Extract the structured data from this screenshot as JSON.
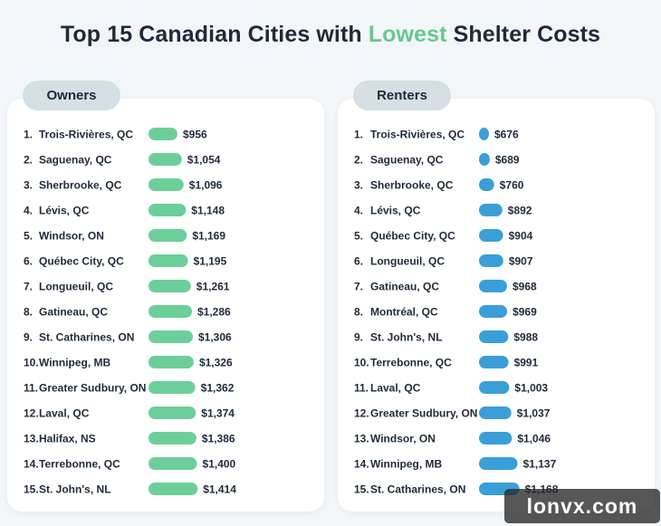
{
  "title": {
    "part1": "Top 15 Canadian Cities with ",
    "highlight": "Lowest",
    "part2": " Shelter Costs"
  },
  "watermark": "lonvx.com",
  "colors": {
    "owners_bar": "#6ccf9a",
    "renters_bar": "#3a9fd8",
    "title_highlight": "#66c891"
  },
  "chart_data": [
    {
      "type": "bar",
      "orientation": "horizontal",
      "panel_label": "Owners",
      "ranks": [
        "1.",
        "2.",
        "3.",
        "4.",
        "5.",
        "6.",
        "7.",
        "8.",
        "9.",
        "10.",
        "11.",
        "12.",
        "13.",
        "14.",
        "15."
      ],
      "categories": [
        "Trois-Rivières, QC",
        "Saguenay, QC",
        "Sherbrooke, QC",
        "Lévis, QC",
        "Windsor, ON",
        "Québec City, QC",
        "Longueuil, QC",
        "Gatineau, QC",
        "St. Catharines, ON",
        "Winnipeg, MB",
        "Greater Sudbury, ON",
        "Laval, QC",
        "Halifax, NS",
        "Terrebonne, QC",
        "St. John's, NL"
      ],
      "values": [
        956,
        1054,
        1096,
        1148,
        1169,
        1195,
        1261,
        1286,
        1306,
        1326,
        1362,
        1374,
        1386,
        1400,
        1414
      ],
      "value_labels": [
        "$956",
        "$1,054",
        "$1,096",
        "$1,148",
        "$1,169",
        "$1,195",
        "$1,261",
        "$1,286",
        "$1,306",
        "$1,326",
        "$1,362",
        "$1,374",
        "$1,386",
        "$1,400",
        "$1,414"
      ]
    },
    {
      "type": "bar",
      "orientation": "horizontal",
      "panel_label": "Renters",
      "ranks": [
        "1.",
        "2.",
        "3.",
        "4.",
        "5.",
        "6.",
        "7.",
        "8.",
        "9.",
        "10.",
        "11.",
        "12.",
        "13.",
        "14.",
        "15."
      ],
      "categories": [
        "Trois-Rivières, QC",
        "Saguenay, QC",
        "Sherbrooke, QC",
        "Lévis, QC",
        "Québec City, QC",
        "Longueuil, QC",
        "Gatineau, QC",
        "Montréal, QC",
        "St. John's, NL",
        "Terrebonne, QC",
        "Laval, QC",
        "Greater Sudbury, ON",
        "Windsor, ON",
        "Winnipeg, MB",
        "St. Catharines, ON"
      ],
      "values": [
        676,
        689,
        760,
        892,
        904,
        907,
        968,
        969,
        988,
        991,
        1003,
        1037,
        1046,
        1137,
        1168
      ],
      "value_labels": [
        "$676",
        "$689",
        "$760",
        "$892",
        "$904",
        "$907",
        "$968",
        "$969",
        "$988",
        "$991",
        "$1,003",
        "$1,037",
        "$1,046",
        "$1,137",
        "$1,168"
      ]
    }
  ]
}
